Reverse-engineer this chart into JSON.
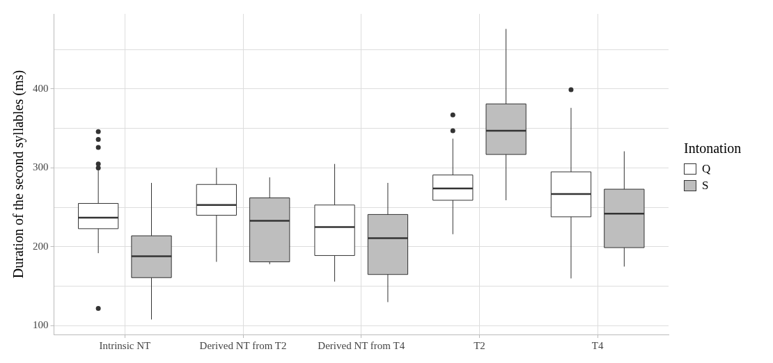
{
  "chart_data": {
    "type": "box",
    "ylabel": "Duration of the second syllables (ms)",
    "legend_title": "Intonation",
    "legend": "right",
    "grid": true,
    "categories": [
      "Intrinsic NT",
      "Derived NT from T2",
      "Derived NT from T4",
      "T2",
      "T4"
    ],
    "ylim": [
      89,
      495
    ],
    "yticks": [
      100,
      {
        "value": 150,
        "label": null
      },
      200,
      {
        "value": 250,
        "label": null
      },
      300,
      {
        "value": 350,
        "label": null
      },
      400,
      {
        "value": 450,
        "label": null
      }
    ],
    "series": [
      {
        "name": "Q",
        "color": "#ffffff",
        "boxes": [
          {
            "low": 192,
            "q1": 223,
            "median": 237,
            "q3": 255,
            "high": 300,
            "outliers": [
              122,
              300,
              305,
              326,
              336,
              346
            ]
          },
          {
            "low": 181,
            "q1": 240,
            "median": 253,
            "q3": 279,
            "high": 300
          },
          {
            "low": 156,
            "q1": 189,
            "median": 225,
            "q3": 253,
            "high": 305
          },
          {
            "low": 216,
            "q1": 259,
            "median": 274,
            "q3": 291,
            "high": 337,
            "outliers": [
              347,
              367
            ]
          },
          {
            "low": 160,
            "q1": 238,
            "median": 267,
            "q3": 295,
            "high": 376,
            "outliers": [
              399
            ]
          }
        ]
      },
      {
        "name": "S",
        "color": "#bebebe",
        "boxes": [
          {
            "low": 108,
            "q1": 161,
            "median": 188,
            "q3": 214,
            "high": 281
          },
          {
            "low": 178,
            "q1": 181,
            "median": 233,
            "q3": 262,
            "high": 288
          },
          {
            "low": 130,
            "q1": 165,
            "median": 211,
            "q3": 241,
            "high": 281
          },
          {
            "low": 259,
            "q1": 317,
            "median": 347,
            "q3": 381,
            "high": 476
          },
          {
            "low": 175,
            "q1": 199,
            "median": 242,
            "q3": 273,
            "high": 321
          }
        ]
      }
    ]
  }
}
